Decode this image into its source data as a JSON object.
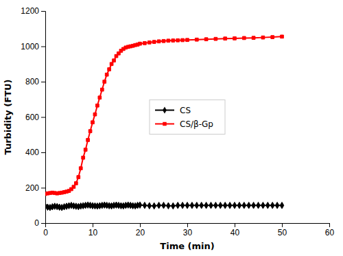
{
  "chart_data": {
    "type": "line",
    "title": "",
    "xlabel": "Time (min)",
    "ylabel": "Turbidity (FTU)",
    "xlim": [
      0,
      60
    ],
    "ylim": [
      0,
      1200
    ],
    "xticks": [
      0,
      10,
      20,
      30,
      40,
      50,
      60
    ],
    "yticks": [
      0,
      200,
      400,
      600,
      800,
      1000,
      1200
    ],
    "grid": false,
    "legend": "center",
    "series": [
      {
        "name": "CS",
        "color": "black",
        "marker": "diamond",
        "x": [
          0,
          0.5,
          1,
          1.5,
          2,
          2.5,
          3,
          3.5,
          4,
          4.5,
          5,
          5.5,
          6,
          6.5,
          7,
          7.5,
          8,
          8.5,
          9,
          9.5,
          10,
          10.5,
          11,
          11.5,
          12,
          12.5,
          13,
          13.5,
          14,
          14.5,
          15,
          15.5,
          16,
          16.5,
          17,
          17.5,
          18,
          18.5,
          19,
          19.5,
          20,
          21,
          22,
          23,
          24,
          25,
          26,
          27,
          28,
          29,
          30,
          31,
          32,
          33,
          34,
          35,
          36,
          37,
          38,
          39,
          40,
          41,
          42,
          43,
          44,
          45,
          46,
          47,
          48,
          49,
          50
        ],
        "values": [
          95,
          90,
          88,
          92,
          95,
          93,
          90,
          88,
          92,
          95,
          98,
          100,
          97,
          95,
          93,
          96,
          98,
          100,
          102,
          100,
          98,
          97,
          96,
          98,
          100,
          102,
          100,
          98,
          97,
          100,
          102,
          100,
          98,
          97,
          100,
          102,
          100,
          98,
          97,
          100,
          102,
          100,
          98,
          97,
          100,
          100,
          98,
          97,
          100,
          100,
          100,
          100,
          100,
          100,
          100,
          100,
          100,
          100,
          100,
          100,
          100,
          100,
          100,
          100,
          100,
          100,
          100,
          100,
          100,
          100,
          100
        ]
      },
      {
        "name": "CS/β-Gp",
        "color": "red",
        "marker": "square",
        "x": [
          0,
          0.5,
          1,
          1.5,
          2,
          2.5,
          3,
          3.5,
          4,
          4.5,
          5,
          5.5,
          6,
          6.5,
          7,
          7.5,
          8,
          8.5,
          9,
          9.5,
          10,
          10.5,
          11,
          11.5,
          12,
          12.5,
          13,
          13.5,
          14,
          14.5,
          15,
          15.5,
          16,
          16.5,
          17,
          17.5,
          18,
          18.5,
          19,
          19.5,
          20,
          21,
          22,
          23,
          24,
          25,
          26,
          27,
          28,
          29,
          30,
          32,
          34,
          36,
          38,
          40,
          42,
          44,
          46,
          48,
          50
        ],
        "values": [
          165,
          168,
          170,
          172,
          170,
          168,
          170,
          172,
          175,
          178,
          182,
          192,
          205,
          225,
          260,
          310,
          370,
          415,
          470,
          520,
          570,
          615,
          665,
          710,
          755,
          800,
          840,
          870,
          900,
          920,
          945,
          960,
          975,
          985,
          993,
          997,
          1000,
          1003,
          1007,
          1010,
          1015,
          1018,
          1022,
          1025,
          1028,
          1030,
          1032,
          1033,
          1034,
          1035,
          1036,
          1038,
          1040,
          1042,
          1044,
          1045,
          1047,
          1048,
          1050,
          1052,
          1055
        ]
      }
    ]
  }
}
